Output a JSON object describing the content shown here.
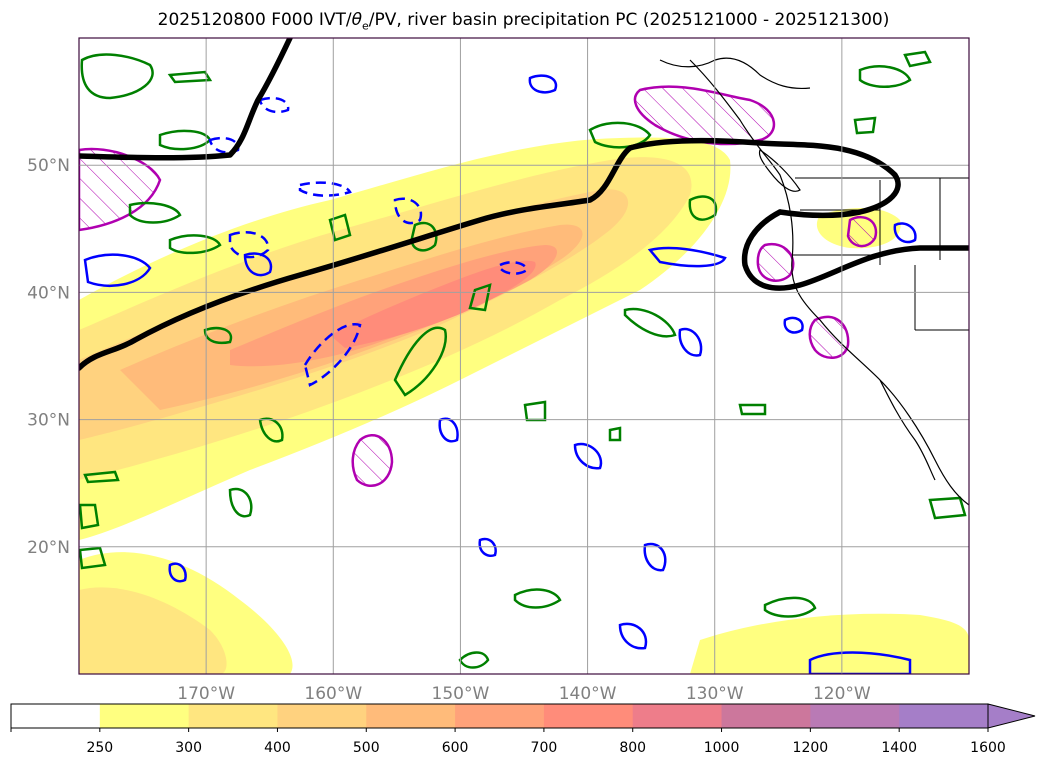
{
  "title": {
    "prefix": "2025120800 F000 IVT/",
    "theta_symbol": "θ",
    "theta_sub": "e",
    "suffix": "/PV, river basin precipitation PC (2025121000 - 2025121300)"
  },
  "map": {
    "lon_range": [
      -180,
      -110
    ],
    "lat_range": [
      10,
      60
    ],
    "lon_ticks": [
      {
        "value": -170,
        "label": "170°W"
      },
      {
        "value": -160,
        "label": "160°W"
      },
      {
        "value": -150,
        "label": "150°W"
      },
      {
        "value": -140,
        "label": "140°W"
      },
      {
        "value": -130,
        "label": "130°W"
      },
      {
        "value": -120,
        "label": "120°W"
      }
    ],
    "lat_ticks": [
      {
        "value": 50,
        "label": "50°N"
      },
      {
        "value": 40,
        "label": "40°N"
      },
      {
        "value": 30,
        "label": "30°N"
      },
      {
        "value": 20,
        "label": "20°N"
      }
    ],
    "grid": true
  },
  "colorbar": {
    "levels": [
      "250",
      "300",
      "400",
      "500",
      "600",
      "700",
      "800",
      "1000",
      "1200",
      "1400",
      "1600"
    ],
    "colors": [
      "#ffffff",
      "#ffff80",
      "#ffe680",
      "#ffd27f",
      "#ffbb7a",
      "#ffa27a",
      "#ff8c7a",
      "#ee7d8a",
      "#cc779c",
      "#b97ab5",
      "#a57ec8"
    ],
    "extend": "max"
  },
  "colors": {
    "theta_e": "#008000",
    "pv_positive": "#0000ff",
    "precip_pc": "#b000b0",
    "ivt_axis": "#000000",
    "coast": "#000000"
  }
}
